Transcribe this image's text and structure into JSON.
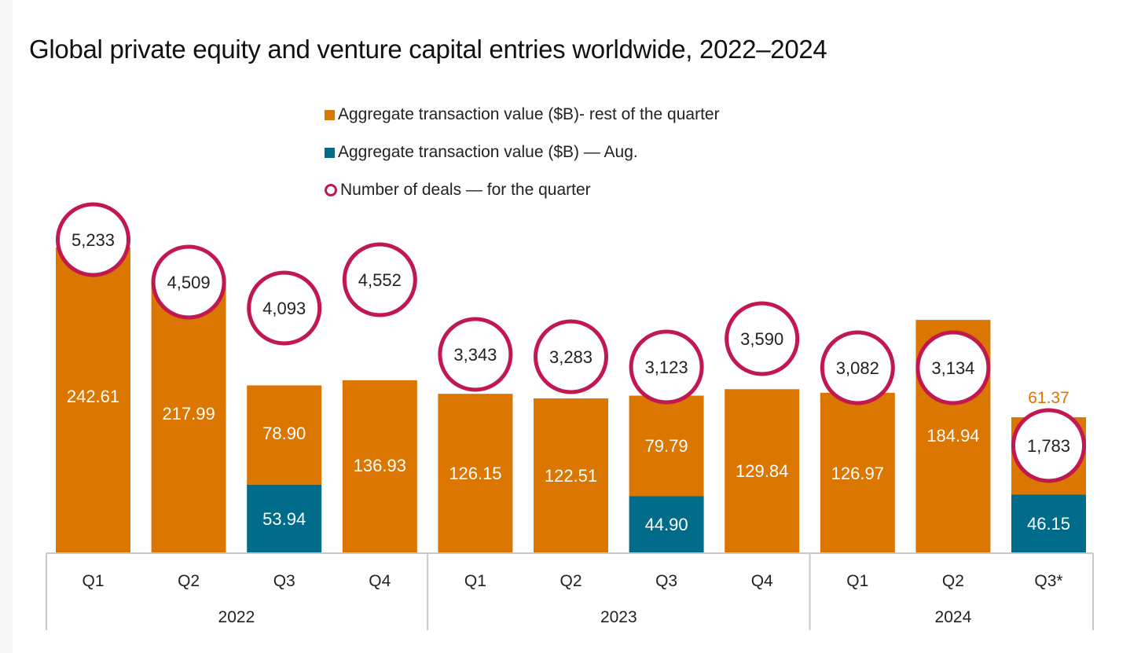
{
  "title": "Global private equity and venture capital entries worldwide, 2022–2024",
  "legend": [
    {
      "label": "Aggregate transaction value ($B)- rest of the quarter",
      "marker": "square",
      "color": "#db7600"
    },
    {
      "label": "Aggregate transaction value ($B) — Aug.",
      "marker": "square",
      "color": "#006c8a"
    },
    {
      "label": "Number of deals — for the quarter",
      "marker": "ring",
      "color": "#c1184f"
    }
  ],
  "chart_data": {
    "type": "bar",
    "stacked": true,
    "title": "Global private equity and venture capital entries worldwide, 2022–2024",
    "xlabel": "",
    "ylabel": "",
    "categories": [
      "Q1",
      "Q2",
      "Q3",
      "Q4",
      "Q1",
      "Q2",
      "Q3",
      "Q4",
      "Q1",
      "Q2",
      "Q3*"
    ],
    "groups": [
      {
        "label": "2022",
        "span": 4
      },
      {
        "label": "2023",
        "span": 4
      },
      {
        "label": "2024",
        "span": 3
      }
    ],
    "series": [
      {
        "name": "Aggregate transaction value ($B) — Aug.",
        "color": "#006c8a",
        "values": [
          null,
          null,
          53.94,
          null,
          null,
          null,
          44.9,
          null,
          null,
          null,
          46.15
        ]
      },
      {
        "name": "Aggregate transaction value ($B)- rest of the quarter",
        "color": "#db7600",
        "values": [
          242.61,
          217.99,
          78.9,
          136.93,
          126.15,
          122.51,
          79.79,
          129.84,
          126.97,
          184.94,
          61.37
        ]
      },
      {
        "name": "Number of deals — for the quarter",
        "color": "#c1184f",
        "marker": "ring",
        "values": [
          5233,
          4509,
          4093,
          4552,
          3343,
          3283,
          3123,
          3590,
          3082,
          3134,
          1783
        ],
        "labels": [
          "5,233",
          "4,509",
          "4,093",
          "4,552",
          "3,343",
          "3,283",
          "3,123",
          "3,590",
          "3,082",
          "3,134",
          "1,783"
        ]
      }
    ],
    "value_labels": [
      "242.61",
      "217.99",
      "78.90",
      "136.93",
      "126.15",
      "122.51",
      "79.79",
      "129.84",
      "126.97",
      "184.94",
      "61.37"
    ],
    "aug_labels": [
      null,
      null,
      "53.94",
      null,
      null,
      null,
      "44.90",
      null,
      null,
      null,
      "46.15"
    ],
    "outside_label_index": 10,
    "y_axis_visible": false,
    "grid": false,
    "legend_position": "top-center"
  }
}
